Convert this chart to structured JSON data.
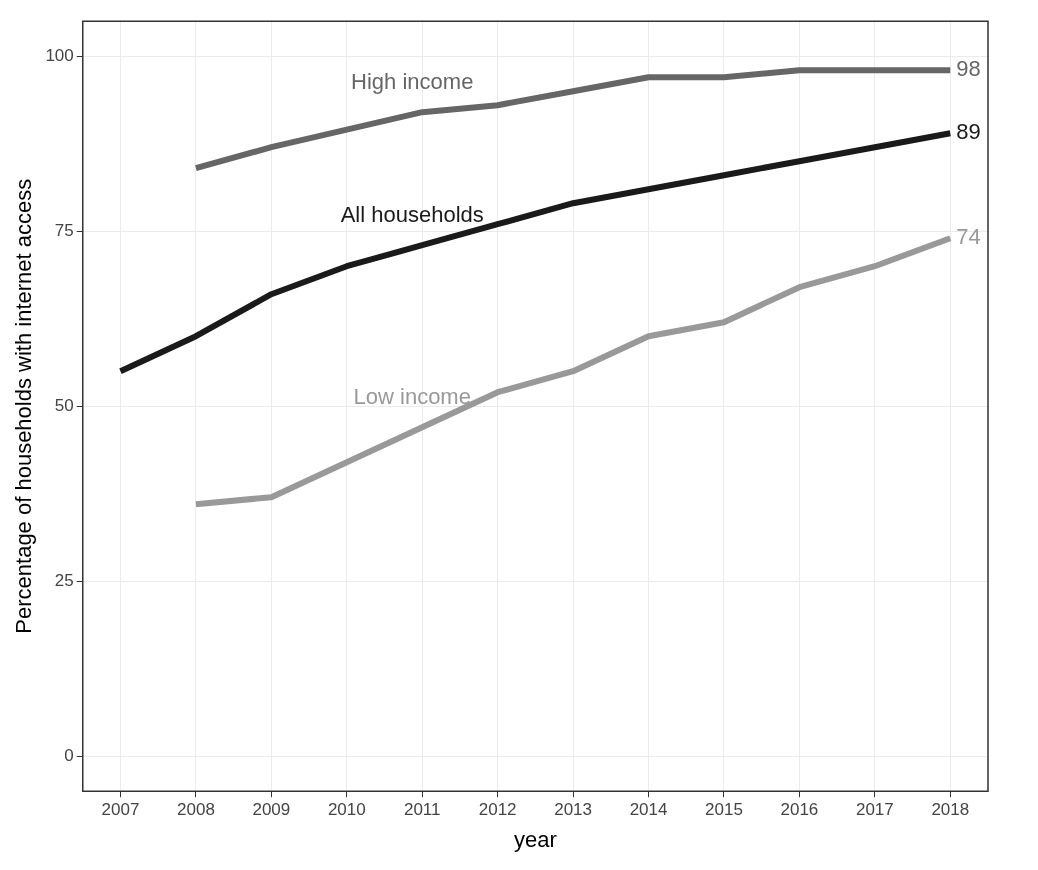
{
  "chart_data": {
    "type": "line",
    "xlabel": "year",
    "ylabel": "Percentage of households with internet access",
    "categories": [
      "2007",
      "2008",
      "2009",
      "2010",
      "2011",
      "2012",
      "2013",
      "2014",
      "2015",
      "2016",
      "2017",
      "2018"
    ],
    "series": [
      {
        "name": "High income",
        "color": "#666666",
        "values": [
          null,
          84,
          87,
          89.5,
          92,
          93,
          95,
          97,
          97,
          98,
          98,
          98
        ],
        "value_labels": [
          null,
          null,
          null,
          null,
          null,
          null,
          null,
          null,
          null,
          null,
          null,
          "98"
        ]
      },
      {
        "name": "All households",
        "color": "#1a1a1a",
        "values": [
          55,
          60,
          66,
          70,
          73,
          76,
          79,
          81,
          83,
          85,
          87,
          89
        ],
        "value_labels": [
          null,
          null,
          null,
          null,
          null,
          null,
          null,
          null,
          null,
          null,
          null,
          "89"
        ]
      },
      {
        "name": "Low income",
        "color": "#999999",
        "values": [
          null,
          36,
          37,
          42,
          47,
          52,
          55,
          60,
          62,
          67,
          70,
          74
        ],
        "value_labels": [
          null,
          null,
          null,
          null,
          null,
          null,
          null,
          null,
          null,
          null,
          null,
          "74"
        ]
      }
    ],
    "ylim": [
      -5,
      105
    ],
    "yticks": [
      0,
      25,
      50,
      75,
      100
    ],
    "grid": true,
    "legend": false,
    "marker": "none",
    "line_style": "solid"
  }
}
